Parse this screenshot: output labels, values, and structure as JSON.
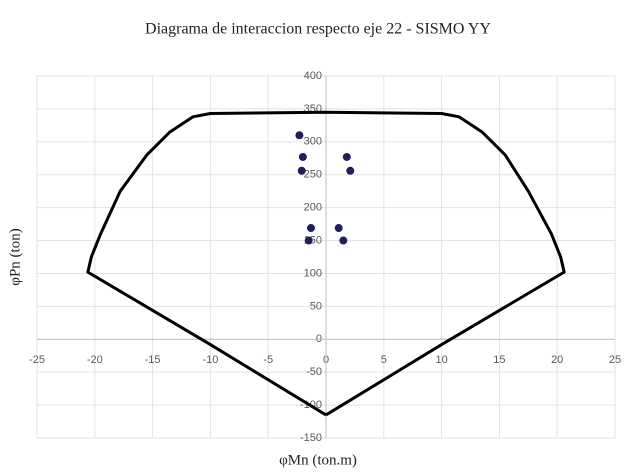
{
  "chart_data": {
    "type": "scatter",
    "title": "Diagrama de interaccion respecto eje 22 - SISMO YY",
    "x_label": "φMn (ton.m)",
    "y_label": "φPn (ton)",
    "xlim": [
      -25,
      25
    ],
    "ylim": [
      -150,
      400
    ],
    "xticks": [
      -25,
      -20,
      -15,
      -10,
      -5,
      0,
      5,
      10,
      15,
      20,
      25
    ],
    "yticks": [
      -150,
      -100,
      -50,
      0,
      50,
      100,
      150,
      200,
      250,
      300,
      350,
      400
    ],
    "grid": true,
    "series": [
      {
        "type": "line",
        "color": "#000000",
        "x": [
          0,
          -10,
          -20.6,
          -20.3,
          -19.5,
          -17.8,
          -15.5,
          -13.5,
          -11.5,
          -10,
          0,
          10,
          11.5,
          13.5,
          15.5,
          17.5,
          19.5,
          20.3,
          20.6,
          10,
          0
        ],
        "values": [
          -115,
          -8,
          102,
          125,
          160,
          225,
          280,
          315,
          338,
          343,
          345,
          343,
          338,
          315,
          280,
          225,
          160,
          125,
          102,
          -8,
          -115
        ]
      },
      {
        "type": "scatter",
        "color": "#1f1f5c",
        "x": [
          -2.3,
          -2,
          -2.1,
          1.8,
          2.1,
          -1.3,
          -1.5,
          1.1,
          1.5
        ],
        "values": [
          310,
          277,
          256,
          277,
          256,
          169,
          150,
          169,
          150
        ]
      }
    ]
  }
}
